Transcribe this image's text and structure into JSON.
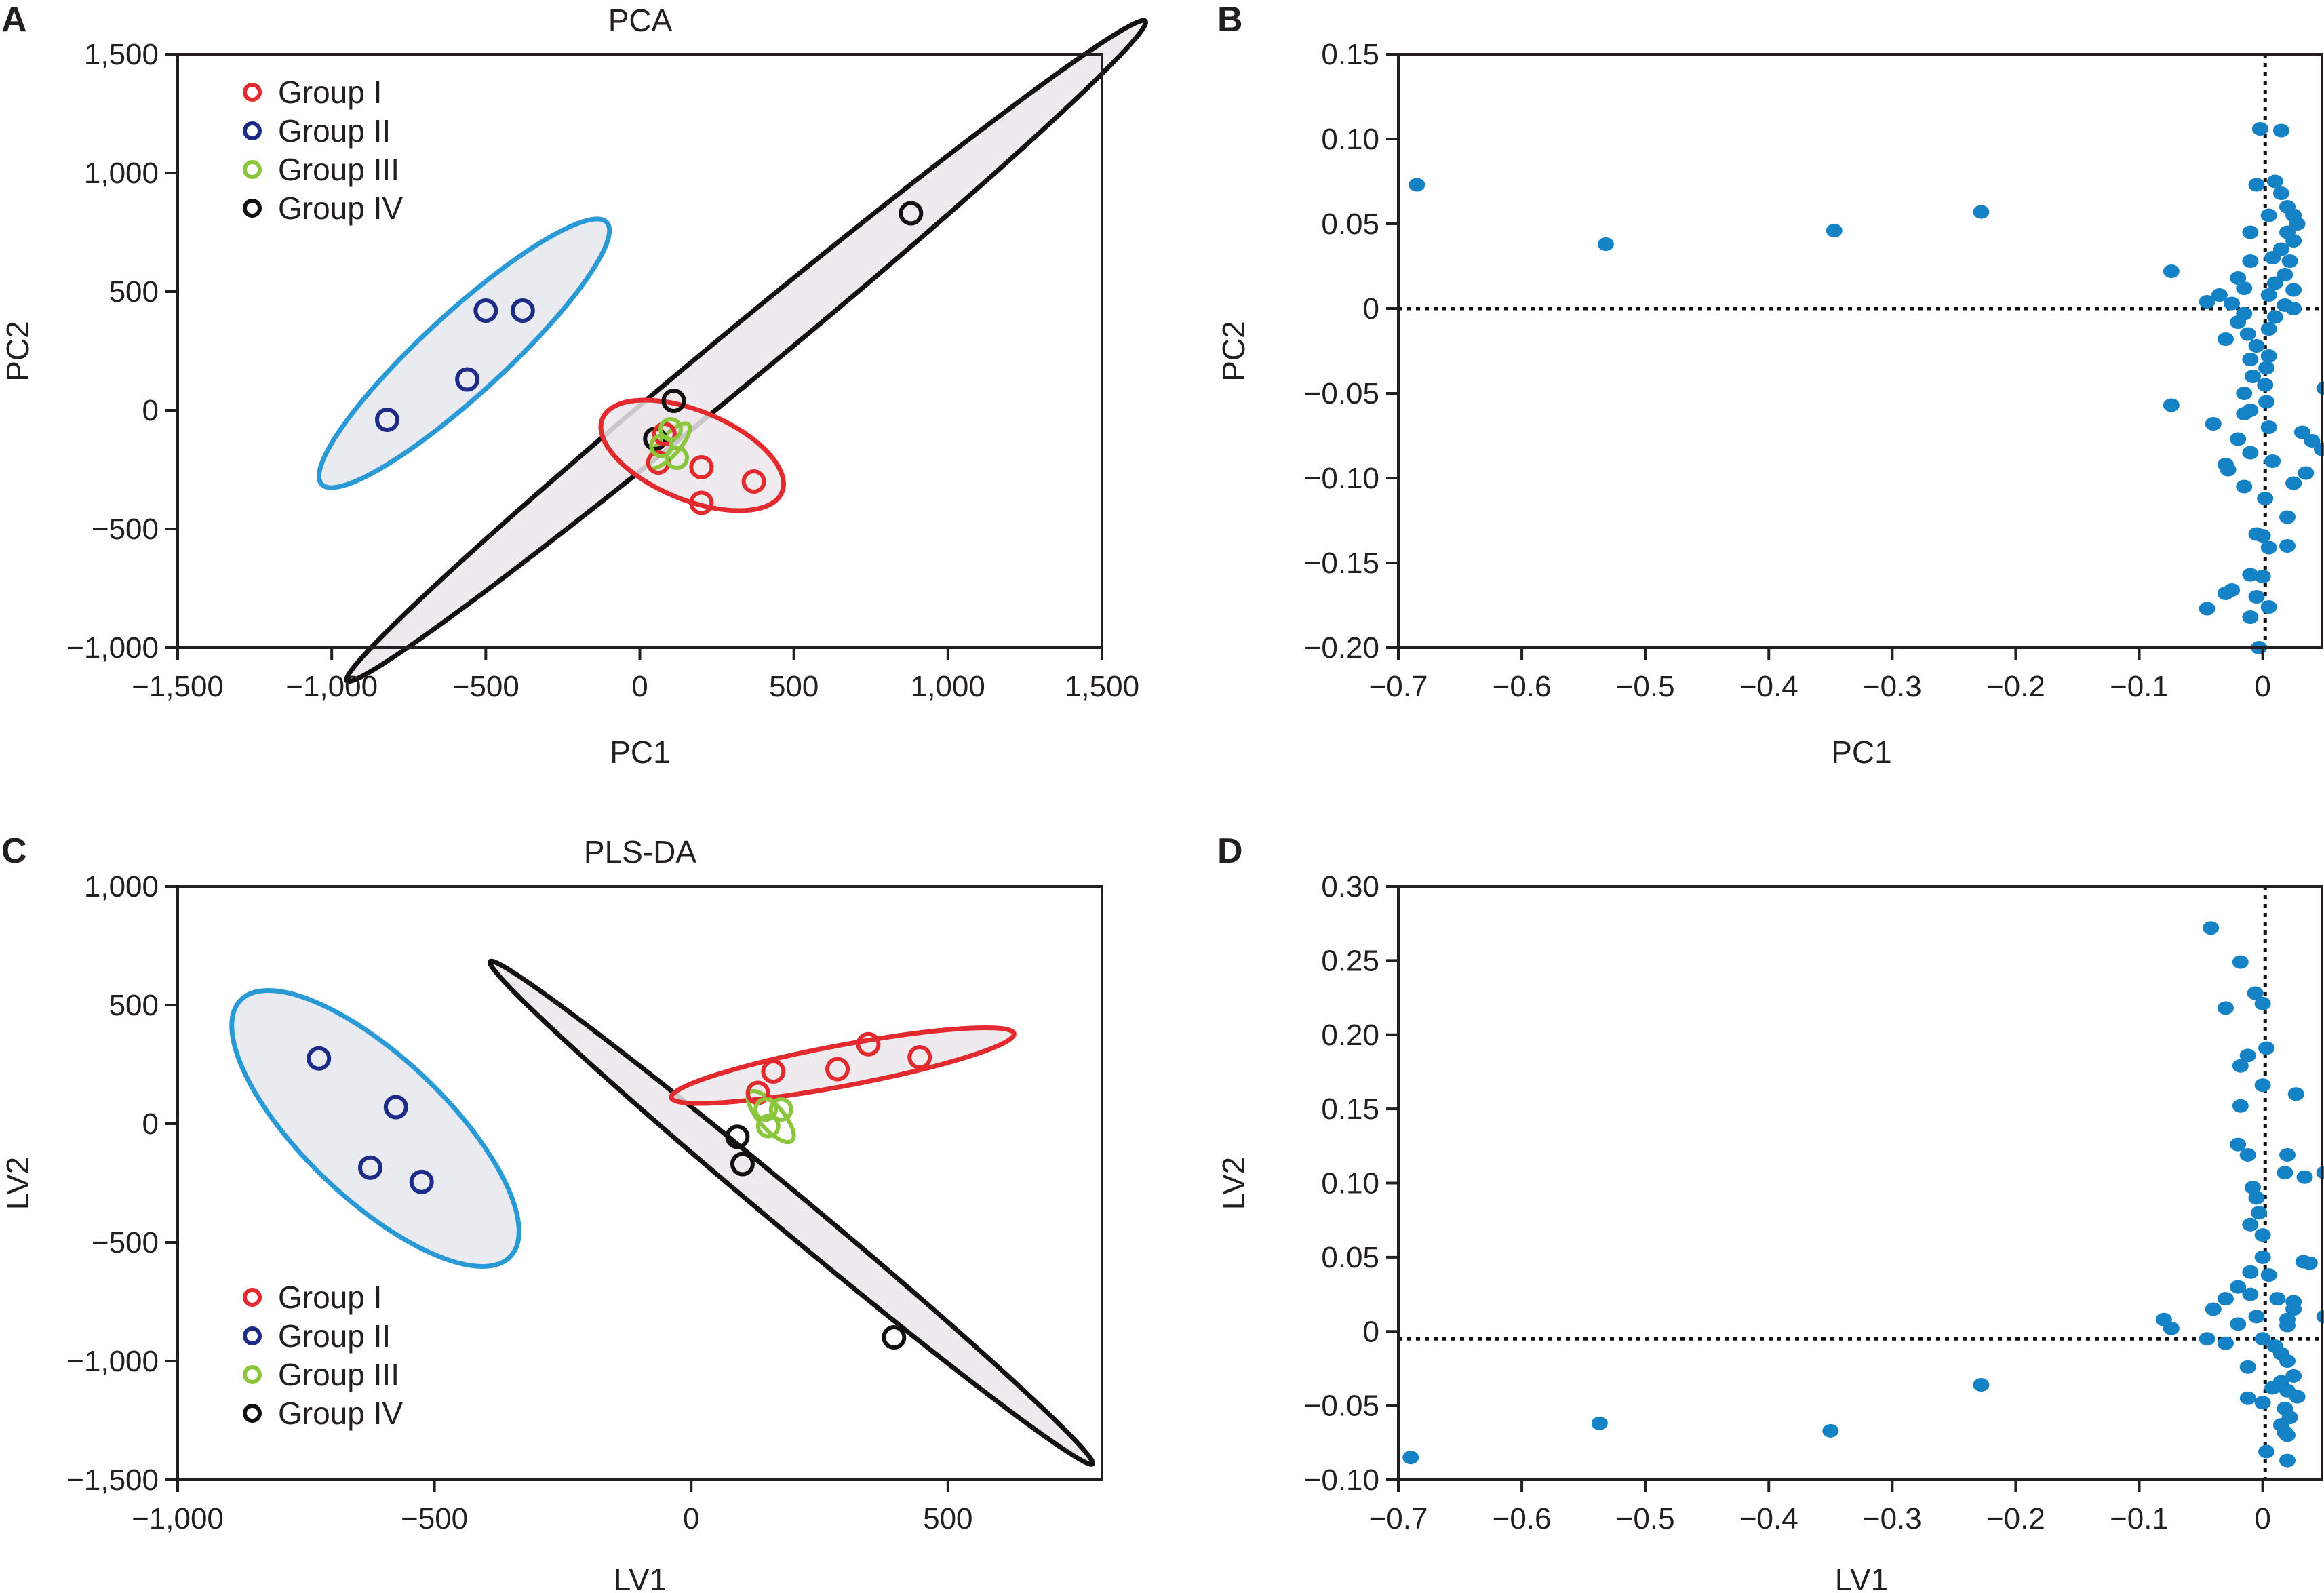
{
  "figure": {
    "panel_letters": [
      "A",
      "B",
      "C",
      "D"
    ]
  },
  "colors": {
    "group_i": "#e32b2f",
    "group_ii": "#1d2c86",
    "group_iii": "#8cc63f",
    "group_iv": "#111111",
    "group_ii_ellipse": "#2a9ad6",
    "ellipse_fill": "#ece6ea",
    "loading_point": "#1682c6",
    "axis": "#231f20"
  },
  "chart_data": [
    {
      "panel": "A",
      "type": "scatter",
      "title": "PCA",
      "xlabel": "PC1",
      "ylabel": "PC2",
      "xlim": [
        -1500,
        1500
      ],
      "ylim": [
        -1000,
        1500
      ],
      "xticks": [
        -1500,
        -1000,
        -500,
        0,
        500,
        1000,
        1500
      ],
      "xtick_labels": [
        "−1,500",
        "−1,000",
        "−500",
        "0",
        "500",
        "1,000",
        "1,500"
      ],
      "yticks": [
        -1000,
        -500,
        0,
        500,
        1000,
        1500
      ],
      "ytick_labels": [
        "−1,000",
        "−500",
        "0",
        "500",
        "1,000",
        "1,500"
      ],
      "legend": {
        "position": "top-left",
        "entries": [
          "Group I",
          "Group II",
          "Group III",
          "Group IV"
        ]
      },
      "series": [
        {
          "name": "Group I",
          "color_key": "group_i",
          "points": [
            [
              80,
              -100
            ],
            [
              200,
              -240
            ],
            [
              370,
              -300
            ],
            [
              200,
              -390
            ],
            [
              60,
              -220
            ]
          ],
          "ellipse": {
            "cx": 170,
            "cy": -190,
            "rx": 330,
            "ry": 175,
            "angle_deg": -28
          }
        },
        {
          "name": "Group II",
          "color_key": "group_ii",
          "ellipse_color_key": "group_ii_ellipse",
          "points": [
            [
              -820,
              -40
            ],
            [
              -560,
              130
            ],
            [
              -500,
              420
            ],
            [
              -380,
              420
            ]
          ],
          "ellipse": {
            "cx": -570,
            "cy": 240,
            "rx": 720,
            "ry": 145,
            "angle_deg": 50
          }
        },
        {
          "name": "Group III",
          "color_key": "group_iii",
          "points": [
            [
              100,
              -80
            ],
            [
              120,
              -200
            ],
            [
              70,
              -150
            ]
          ],
          "ellipse": {
            "cx": 95,
            "cy": -150,
            "rx": 110,
            "ry": 35,
            "angle_deg": 55
          }
        },
        {
          "name": "Group IV",
          "color_key": "group_iv",
          "points": [
            [
              110,
              40
            ],
            [
              50,
              -120
            ],
            [
              880,
              830
            ]
          ],
          "ellipse": {
            "cx": 345,
            "cy": 250,
            "rx": 1900,
            "ry": 95,
            "angle_deg": 47
          }
        }
      ]
    },
    {
      "panel": "B",
      "type": "scatter",
      "title": "",
      "xlabel": "PC1",
      "ylabel": "PC2",
      "xlim": [
        -0.7,
        0.048
      ],
      "ylim": [
        -0.2,
        0.15
      ],
      "xticks": [
        -0.7,
        -0.6,
        -0.5,
        -0.4,
        -0.3,
        -0.2,
        -0.1,
        0
      ],
      "xtick_labels": [
        "−0.7",
        "−0.6",
        "−0.5",
        "−0.4",
        "−0.3",
        "−0.2",
        "−0.1",
        "0"
      ],
      "yticks": [
        -0.2,
        -0.15,
        -0.1,
        -0.05,
        0,
        0.05,
        0.1,
        0.15
      ],
      "ytick_labels": [
        "−0.20",
        "−0.15",
        "−0.10",
        "−0.05",
        "0",
        "0.05",
        "0.10",
        "0.15"
      ],
      "reference_lines": {
        "x": 0.002,
        "y": 0
      },
      "points": [
        [
          -0.685,
          0.073
        ],
        [
          -0.532,
          0.038
        ],
        [
          -0.347,
          0.046
        ],
        [
          -0.228,
          0.057
        ],
        [
          -0.074,
          0.022
        ],
        [
          -0.074,
          -0.057
        ],
        [
          -0.002,
          0.106
        ],
        [
          0.015,
          0.105
        ],
        [
          -0.005,
          0.073
        ],
        [
          0.01,
          0.075
        ],
        [
          0.015,
          0.068
        ],
        [
          0.02,
          0.06
        ],
        [
          0.025,
          0.055
        ],
        [
          0.028,
          0.05
        ],
        [
          0.02,
          0.045
        ],
        [
          0.005,
          0.055
        ],
        [
          -0.01,
          0.045
        ],
        [
          0.025,
          0.04
        ],
        [
          0.015,
          0.035
        ],
        [
          0.008,
          0.03
        ],
        [
          0.022,
          0.028
        ],
        [
          -0.01,
          0.028
        ],
        [
          0.018,
          0.02
        ],
        [
          -0.02,
          0.018
        ],
        [
          0.01,
          0.015
        ],
        [
          0.025,
          0.011
        ],
        [
          -0.015,
          0.012
        ],
        [
          0.005,
          0.008
        ],
        [
          -0.035,
          0.008
        ],
        [
          -0.045,
          0.004
        ],
        [
          -0.025,
          0.003
        ],
        [
          0.018,
          0.002
        ],
        [
          0.025,
          0.0
        ],
        [
          -0.015,
          -0.003
        ],
        [
          0.01,
          -0.005
        ],
        [
          -0.02,
          -0.008
        ],
        [
          0.005,
          -0.012
        ],
        [
          -0.012,
          -0.015
        ],
        [
          -0.03,
          -0.018
        ],
        [
          -0.005,
          -0.022
        ],
        [
          0.005,
          -0.028
        ],
        [
          -0.01,
          -0.03
        ],
        [
          0.003,
          -0.035
        ],
        [
          -0.008,
          -0.04
        ],
        [
          0.002,
          -0.045
        ],
        [
          -0.015,
          -0.05
        ],
        [
          0.003,
          -0.055
        ],
        [
          -0.01,
          -0.06
        ],
        [
          0.05,
          -0.047
        ],
        [
          -0.015,
          -0.062
        ],
        [
          -0.04,
          -0.068
        ],
        [
          0.005,
          -0.07
        ],
        [
          0.032,
          -0.073
        ],
        [
          0.04,
          -0.078
        ],
        [
          0.048,
          -0.083
        ],
        [
          -0.02,
          -0.077
        ],
        [
          -0.01,
          -0.085
        ],
        [
          -0.03,
          -0.092
        ],
        [
          -0.028,
          -0.095
        ],
        [
          0.008,
          -0.09
        ],
        [
          0.035,
          -0.097
        ],
        [
          0.025,
          -0.103
        ],
        [
          -0.015,
          -0.105
        ],
        [
          0.002,
          -0.112
        ],
        [
          0.02,
          -0.123
        ],
        [
          -0.005,
          -0.133
        ],
        [
          0.0,
          -0.134
        ],
        [
          0.005,
          -0.141
        ],
        [
          0.02,
          -0.14
        ],
        [
          -0.01,
          -0.157
        ],
        [
          0.0,
          -0.158
        ],
        [
          -0.025,
          -0.166
        ],
        [
          -0.03,
          -0.168
        ],
        [
          -0.005,
          -0.17
        ],
        [
          -0.045,
          -0.177
        ],
        [
          0.005,
          -0.176
        ],
        [
          -0.01,
          -0.182
        ],
        [
          -0.003,
          -0.2
        ]
      ]
    },
    {
      "panel": "C",
      "type": "scatter",
      "title": "PLS-DA",
      "xlabel": "LV1",
      "ylabel": "LV2",
      "xlim": [
        -1000,
        800
      ],
      "ylim": [
        -1500,
        1000
      ],
      "xticks": [
        -1000,
        -500,
        0,
        500
      ],
      "xtick_labels": [
        "−1,000",
        "−500",
        "0",
        "500"
      ],
      "yticks": [
        -1500,
        -1000,
        -500,
        0,
        500,
        1000
      ],
      "ytick_labels": [
        "−1,500",
        "−1,000",
        "−500",
        "0",
        "500",
        "1,000"
      ],
      "legend": {
        "position": "bottom-left",
        "entries": [
          "Group I",
          "Group II",
          "Group III",
          "Group IV"
        ]
      },
      "series": [
        {
          "name": "Group I",
          "color_key": "group_i",
          "points": [
            [
              130,
              130
            ],
            [
              160,
              220
            ],
            [
              285,
              230
            ],
            [
              345,
              335
            ],
            [
              445,
              280
            ]
          ],
          "ellipse": {
            "cx": 295,
            "cy": 245,
            "rx": 360,
            "ry": 70,
            "angle_deg": 22
          }
        },
        {
          "name": "Group II",
          "color_key": "group_ii",
          "ellipse_color_key": "group_ii_ellipse",
          "points": [
            [
              -725,
              275
            ],
            [
              -575,
              70
            ],
            [
              -625,
              -185
            ],
            [
              -525,
              -245
            ]
          ],
          "ellipse": {
            "cx": -615,
            "cy": -20,
            "rx": 600,
            "ry": 150,
            "angle_deg": -64
          }
        },
        {
          "name": "Group III",
          "color_key": "group_iii",
          "points": [
            [
              145,
              60
            ],
            [
              175,
              60
            ],
            [
              150,
              -10
            ]
          ],
          "ellipse": {
            "cx": 155,
            "cy": 30,
            "rx": 110,
            "ry": 25,
            "angle_deg": -68
          }
        },
        {
          "name": "Group IV",
          "color_key": "group_iv",
          "points": [
            [
              90,
              -55
            ],
            [
              100,
              -170
            ],
            [
              395,
              -900
            ]
          ],
          "ellipse": {
            "cx": 195,
            "cy": -375,
            "rx": 1210,
            "ry": 40,
            "angle_deg": -61
          }
        }
      ]
    },
    {
      "panel": "D",
      "type": "scatter",
      "title": "",
      "xlabel": "LV1",
      "ylabel": "LV2",
      "xlim": [
        -0.7,
        0.048
      ],
      "ylim": [
        -0.1,
        0.3
      ],
      "xticks": [
        -0.7,
        -0.6,
        -0.5,
        -0.4,
        -0.3,
        -0.2,
        -0.1,
        0
      ],
      "xtick_labels": [
        "−0.7",
        "−0.6",
        "−0.5",
        "−0.4",
        "−0.3",
        "−0.2",
        "−0.1",
        "0"
      ],
      "yticks": [
        -0.1,
        -0.05,
        0,
        0.05,
        0.1,
        0.15,
        0.2,
        0.25,
        0.3
      ],
      "ytick_labels": [
        "−0.10",
        "−0.05",
        "0",
        "0.05",
        "0.10",
        "0.15",
        "0.20",
        "0.25",
        "0.30"
      ],
      "reference_lines": {
        "x": 0.002,
        "y": -0.005
      },
      "points": [
        [
          -0.69,
          -0.085
        ],
        [
          -0.537,
          -0.062
        ],
        [
          -0.35,
          -0.067
        ],
        [
          -0.228,
          -0.036
        ],
        [
          -0.08,
          0.008
        ],
        [
          -0.074,
          0.002
        ],
        [
          -0.042,
          0.272
        ],
        [
          -0.018,
          0.249
        ],
        [
          -0.006,
          0.228
        ],
        [
          0.0,
          0.221
        ],
        [
          -0.03,
          0.218
        ],
        [
          0.003,
          0.191
        ],
        [
          -0.012,
          0.186
        ],
        [
          -0.018,
          0.179
        ],
        [
          0.0,
          0.166
        ],
        [
          0.027,
          0.16
        ],
        [
          -0.018,
          0.152
        ],
        [
          -0.02,
          0.126
        ],
        [
          -0.012,
          0.119
        ],
        [
          0.02,
          0.119
        ],
        [
          0.018,
          0.107
        ],
        [
          0.034,
          0.104
        ],
        [
          0.05,
          0.107
        ],
        [
          -0.008,
          0.097
        ],
        [
          -0.005,
          0.09
        ],
        [
          -0.003,
          0.08
        ],
        [
          -0.01,
          0.072
        ],
        [
          0.0,
          0.065
        ],
        [
          0.0,
          0.05
        ],
        [
          0.033,
          0.047
        ],
        [
          0.038,
          0.046
        ],
        [
          -0.01,
          0.04
        ],
        [
          0.005,
          0.038
        ],
        [
          -0.02,
          0.03
        ],
        [
          -0.01,
          0.025
        ],
        [
          0.012,
          0.022
        ],
        [
          0.025,
          0.02
        ],
        [
          -0.03,
          0.022
        ],
        [
          -0.04,
          0.015
        ],
        [
          0.025,
          0.015
        ],
        [
          0.05,
          0.01
        ],
        [
          -0.005,
          0.01
        ],
        [
          0.02,
          0.008
        ],
        [
          0.02,
          0.004
        ],
        [
          -0.02,
          0.005
        ],
        [
          -0.045,
          -0.005
        ],
        [
          -0.03,
          -0.008
        ],
        [
          0.0,
          -0.005
        ],
        [
          0.01,
          -0.01
        ],
        [
          0.015,
          -0.015
        ],
        [
          0.02,
          -0.02
        ],
        [
          -0.012,
          -0.024
        ],
        [
          0.025,
          -0.03
        ],
        [
          0.015,
          -0.034
        ],
        [
          0.008,
          -0.038
        ],
        [
          0.02,
          -0.04
        ],
        [
          0.028,
          -0.044
        ],
        [
          -0.012,
          -0.045
        ],
        [
          0.0,
          -0.048
        ],
        [
          0.018,
          -0.052
        ],
        [
          0.022,
          -0.058
        ],
        [
          0.015,
          -0.063
        ],
        [
          0.018,
          -0.068
        ],
        [
          0.02,
          -0.07
        ],
        [
          0.003,
          -0.081
        ],
        [
          0.02,
          -0.087
        ]
      ]
    }
  ]
}
